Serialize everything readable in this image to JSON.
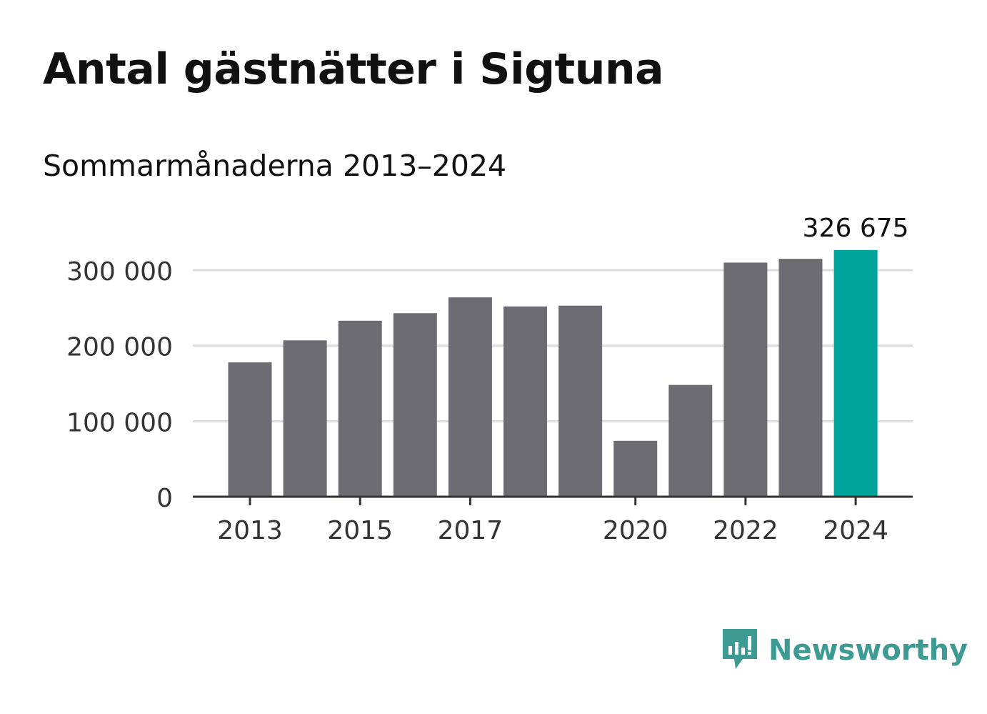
{
  "colors": {
    "bar": "#6d6c72",
    "highlight": "#00a49a",
    "grid": "#dcdcdc",
    "axis": "#333333",
    "text": "#333333",
    "brand": "#3d9b94"
  },
  "brand": {
    "name": "Newsworthy",
    "icon": "bar-chart-speech-bubble-icon"
  },
  "chart_data": {
    "type": "bar",
    "title": "Antal gästnätter i Sigtuna",
    "subtitle": "Sommarmånaderna 2013–2024",
    "categories": [
      "2013",
      "2014",
      "2015",
      "2016",
      "2017",
      "2018",
      "2019",
      "2020",
      "2021",
      "2022",
      "2023",
      "2024"
    ],
    "values": [
      178000,
      207000,
      233000,
      243000,
      264000,
      252000,
      253000,
      74000,
      148000,
      310000,
      315000,
      326675
    ],
    "x_tick_labels": [
      "2013",
      "",
      "2015",
      "",
      "2017",
      "",
      "",
      "2020",
      "",
      "2022",
      "",
      "2024"
    ],
    "y_ticks": [
      0,
      100000,
      200000,
      300000
    ],
    "y_tick_labels": [
      "0",
      "100 000",
      "200 000",
      "300 000"
    ],
    "ylim": [
      0,
      330000
    ],
    "highlight_index": 11,
    "data_labels": [
      {
        "index": 11,
        "text": "326 675"
      }
    ],
    "xlabel": "",
    "ylabel": "",
    "grid": true,
    "legend": "none"
  }
}
